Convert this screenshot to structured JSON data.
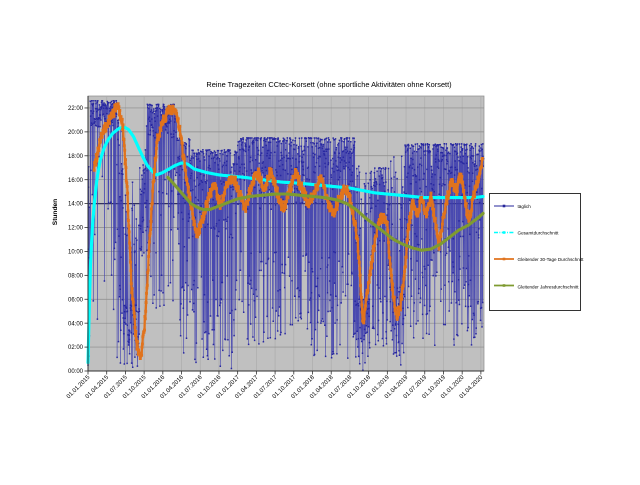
{
  "chart_data": {
    "type": "line",
    "title": "Reine Tragezeiten CCtec-Korsett (ohne sportliche Aktivitäten ohne Korsett)",
    "ylabel": "Stunden",
    "xlabel": "",
    "ylim_hours": [
      0,
      23
    ],
    "y_tick_step_hours": 2,
    "y_ticks": [
      "00:00",
      "02:00",
      "04:00",
      "06:00",
      "08:00",
      "10:00",
      "12:00",
      "14:00",
      "16:00",
      "18:00",
      "20:00",
      "22:00"
    ],
    "x_ticks": [
      "01.01.2015",
      "01.04.2015",
      "01.07.2015",
      "01.10.2015",
      "01.01.2016",
      "01.04.2016",
      "01.07.2016",
      "01.10.2016",
      "01.01.2017",
      "01.04.2017",
      "01.07.2017",
      "01.10.2017",
      "01.01.2018",
      "01.04.2018",
      "01.07.2018",
      "01.10.2018",
      "01.01.2019",
      "01.04.2019",
      "01.07.2019",
      "01.10.2019",
      "01.01.2020",
      "01.04.2020"
    ],
    "x_range_months": [
      0,
      63.5
    ],
    "plot_bg": "#c0c0c0",
    "grid": {
      "horizontal": true,
      "vertical": true,
      "h_color": "#8a8a8a",
      "v_color": "#acacac",
      "emphasis_line_hours": 14,
      "emphasis_color": "#32325f"
    },
    "legend_position": "right",
    "legend": [
      {
        "label": "täglich",
        "color": "#26269b",
        "style": "thin-line+square-marker"
      },
      {
        "label": "Gesamtdurchschnitt",
        "color": "#00ffff",
        "style": "dash-dot+square-marker"
      },
      {
        "label": "Gleitender 30-Tage Durchschnitt",
        "color": "#e0731d",
        "style": "line+square-marker"
      },
      {
        "label": "Gleitender Jahresdurchschnitt",
        "color": "#7f9b30",
        "style": "line+square-marker"
      }
    ],
    "series": [
      {
        "name": "täglich",
        "kind": "daily",
        "color": "#2828a0",
        "line_color": "#3c3cae",
        "seed": 7,
        "units": "hours_per_day",
        "envelope": [
          {
            "m0": 0,
            "m1": 0.35,
            "hi": 18,
            "jit": 16,
            "p": 0.4,
            "omin": 0,
            "omax": 8
          },
          {
            "m0": 0.35,
            "m1": 4.6,
            "hi": 22.6,
            "jit": 2.2,
            "p": 0.16,
            "omin": 4,
            "omax": 18
          },
          {
            "m0": 4.6,
            "m1": 5.6,
            "hi": 21,
            "jit": 9,
            "p": 0.4,
            "omin": 0,
            "omax": 12
          },
          {
            "m0": 5.6,
            "m1": 8.3,
            "hi": 5.5,
            "jit": 5.5,
            "p": 0.28,
            "omin": 7,
            "omax": 16
          },
          {
            "m0": 8.3,
            "m1": 9.5,
            "hi": 17,
            "jit": 8,
            "p": 0.3,
            "omin": 3,
            "omax": 21
          },
          {
            "m0": 9.5,
            "m1": 14.2,
            "hi": 22.3,
            "jit": 2.8,
            "p": 0.2,
            "omin": 5,
            "omax": 17
          },
          {
            "m0": 14.2,
            "m1": 16.5,
            "hi": 19.5,
            "jit": 8,
            "p": 0.3,
            "omin": 1,
            "omax": 12
          },
          {
            "m0": 16.5,
            "m1": 24,
            "hi": 18.5,
            "jit": 7.5,
            "p": 0.22,
            "omin": 0,
            "omax": 8
          },
          {
            "m0": 24,
            "m1": 36,
            "hi": 19.5,
            "jit": 6,
            "p": 0.22,
            "omin": 2,
            "omax": 10
          },
          {
            "m0": 36,
            "m1": 42.8,
            "hi": 19.5,
            "jit": 6,
            "p": 0.28,
            "omin": 1,
            "omax": 10
          },
          {
            "m0": 42.8,
            "m1": 45.2,
            "hi": 6,
            "jit": 6,
            "p": 0.3,
            "omin": 10,
            "omax": 18
          },
          {
            "m0": 45.2,
            "m1": 48.4,
            "hi": 17,
            "jit": 7,
            "p": 0.3,
            "omin": 2,
            "omax": 10
          },
          {
            "m0": 48.4,
            "m1": 50.8,
            "hi": 7,
            "jit": 7,
            "p": 0.3,
            "omin": 10,
            "omax": 18
          },
          {
            "m0": 50.8,
            "m1": 63.5,
            "hi": 19,
            "jit": 5,
            "p": 0.32,
            "omin": 2,
            "omax": 13
          }
        ]
      },
      {
        "name": "Gesamtdurchschnitt",
        "kind": "smooth",
        "color": "#00ffff",
        "width": 3.1,
        "points": [
          [
            0,
            0.7
          ],
          [
            0.2,
            5
          ],
          [
            0.4,
            9
          ],
          [
            0.7,
            12
          ],
          [
            1,
            14
          ],
          [
            1.5,
            16.3
          ],
          [
            2,
            17.7
          ],
          [
            2.6,
            18.7
          ],
          [
            3.3,
            19.4
          ],
          [
            4,
            19.9
          ],
          [
            5,
            20.3
          ],
          [
            5.8,
            20.4
          ],
          [
            6.5,
            20.2
          ],
          [
            7.3,
            19.6
          ],
          [
            8,
            18.8
          ],
          [
            8.8,
            17.9
          ],
          [
            9.5,
            17.2
          ],
          [
            10.3,
            16.7
          ],
          [
            11,
            16.4
          ],
          [
            12,
            16.6
          ],
          [
            13,
            16.9
          ],
          [
            14,
            17.2
          ],
          [
            15,
            17.4
          ],
          [
            16,
            17.3
          ],
          [
            17,
            16.9
          ],
          [
            19,
            16.6
          ],
          [
            21,
            16.4
          ],
          [
            23,
            16.3
          ],
          [
            25,
            16.2
          ],
          [
            28,
            16.0
          ],
          [
            31,
            15.8
          ],
          [
            34,
            15.7
          ],
          [
            36,
            15.6
          ],
          [
            38,
            15.5
          ],
          [
            40,
            15.4
          ],
          [
            42,
            15.3
          ],
          [
            44,
            15.1
          ],
          [
            46,
            14.9
          ],
          [
            48,
            14.8
          ],
          [
            50,
            14.7
          ],
          [
            52,
            14.6
          ],
          [
            54,
            14.5
          ],
          [
            56,
            14.5
          ],
          [
            58,
            14.5
          ],
          [
            60,
            14.5
          ],
          [
            62,
            14.5
          ],
          [
            63.4,
            14.6
          ]
        ]
      },
      {
        "name": "Gleitender 30-Tage Durchschnitt",
        "kind": "smooth",
        "color": "#e0731d",
        "width": 2.3,
        "fuzzy": true,
        "noise": 0.45,
        "points": [
          [
            1,
            17
          ],
          [
            2,
            19.5
          ],
          [
            3,
            20.5
          ],
          [
            4,
            21.6
          ],
          [
            4.8,
            22.2
          ],
          [
            5.6,
            20.5
          ],
          [
            6.3,
            15
          ],
          [
            7,
            7
          ],
          [
            7.8,
            2.2
          ],
          [
            8.5,
            1.2
          ],
          [
            9.2,
            4.5
          ],
          [
            9.8,
            10
          ],
          [
            10.5,
            16
          ],
          [
            11.2,
            19.5
          ],
          [
            12,
            21
          ],
          [
            13,
            21.8
          ],
          [
            13.8,
            22
          ],
          [
            14.6,
            20.5
          ],
          [
            15.3,
            18
          ],
          [
            16,
            15.5
          ],
          [
            16.8,
            13
          ],
          [
            17.5,
            11.5
          ],
          [
            18.3,
            12.5
          ],
          [
            19.3,
            14.5
          ],
          [
            20.3,
            15.5
          ],
          [
            21.3,
            13.8
          ],
          [
            22.3,
            15.5
          ],
          [
            23.3,
            16.3
          ],
          [
            24.3,
            14.8
          ],
          [
            25.3,
            13.5
          ],
          [
            26.3,
            15.8
          ],
          [
            27.3,
            16.5
          ],
          [
            28.3,
            15.3
          ],
          [
            29.3,
            16.8
          ],
          [
            30.3,
            15
          ],
          [
            31.3,
            13.5
          ],
          [
            32.3,
            15
          ],
          [
            33.3,
            16.5
          ],
          [
            34.3,
            15.3
          ],
          [
            35.3,
            14
          ],
          [
            36.3,
            15
          ],
          [
            37.3,
            16.2
          ],
          [
            38.3,
            14.5
          ],
          [
            39.3,
            13
          ],
          [
            40.3,
            14.5
          ],
          [
            41.3,
            15.5
          ],
          [
            42.3,
            13.8
          ],
          [
            43.2,
            11
          ],
          [
            44.1,
            4
          ],
          [
            44.8,
            6.5
          ],
          [
            45.6,
            9.5
          ],
          [
            46.4,
            12
          ],
          [
            47.2,
            13
          ],
          [
            48,
            12
          ],
          [
            48.6,
            8
          ],
          [
            49.4,
            4.5
          ],
          [
            50.1,
            5.5
          ],
          [
            50.7,
            8
          ],
          [
            51.4,
            12
          ],
          [
            52.1,
            14.3
          ],
          [
            52.8,
            13
          ],
          [
            53.5,
            14.5
          ],
          [
            54.3,
            13
          ],
          [
            55,
            14.8
          ],
          [
            55.8,
            12
          ],
          [
            56.3,
            10.4
          ],
          [
            56.9,
            12.5
          ],
          [
            57.6,
            14.5
          ],
          [
            58.3,
            16
          ],
          [
            59.1,
            15
          ],
          [
            59.8,
            16.5
          ],
          [
            60.5,
            14
          ],
          [
            61.1,
            12.5
          ],
          [
            61.8,
            14.5
          ],
          [
            62.5,
            16
          ],
          [
            63.3,
            17.5
          ]
        ]
      },
      {
        "name": "Gleitender Jahresdurchschnitt",
        "kind": "smooth",
        "color": "#7f9b30",
        "width": 3.1,
        "points": [
          [
            12.8,
            16.2
          ],
          [
            13.5,
            15.8
          ],
          [
            14.5,
            15.2
          ],
          [
            15.5,
            14.6
          ],
          [
            16.5,
            14.0
          ],
          [
            17.5,
            13.7
          ],
          [
            18.5,
            13.5
          ],
          [
            19.5,
            13.5
          ],
          [
            20.5,
            13.7
          ],
          [
            21.5,
            13.9
          ],
          [
            22.5,
            14.1
          ],
          [
            24,
            14.4
          ],
          [
            26,
            14.6
          ],
          [
            28,
            14.7
          ],
          [
            30,
            14.8
          ],
          [
            32,
            14.8
          ],
          [
            34,
            14.7
          ],
          [
            36,
            14.6
          ],
          [
            38,
            14.5
          ],
          [
            40,
            14.3
          ],
          [
            41.5,
            14.0
          ],
          [
            43,
            13.5
          ],
          [
            44.5,
            12.8
          ],
          [
            46,
            12.2
          ],
          [
            47.5,
            11.6
          ],
          [
            49,
            11.0
          ],
          [
            50.5,
            10.6
          ],
          [
            52,
            10.3
          ],
          [
            53.5,
            10.1
          ],
          [
            55,
            10.2
          ],
          [
            56.5,
            10.6
          ],
          [
            58,
            11.2
          ],
          [
            59.5,
            11.8
          ],
          [
            61,
            12.2
          ],
          [
            62.5,
            12.8
          ],
          [
            63.4,
            13.2
          ]
        ]
      }
    ]
  }
}
